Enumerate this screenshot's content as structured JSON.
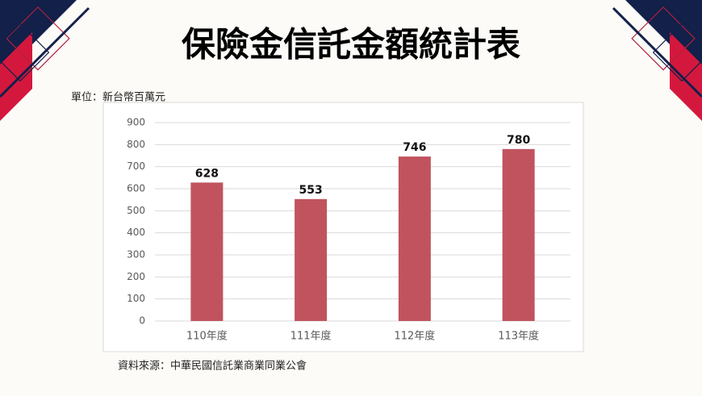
{
  "chart_data": {
    "type": "bar",
    "title": "保險金信託金額統計表",
    "unit_label": "單位：新台幣百萬元",
    "source": "資料來源：中華民國信託業商業同業公會",
    "categories": [
      "110年度",
      "111年度",
      "112年度",
      "113年度"
    ],
    "values": [
      628,
      553,
      746,
      780
    ],
    "color": "#c0535e",
    "ylim": [
      0,
      900
    ],
    "yticks": [
      0,
      100,
      200,
      300,
      400,
      500,
      600,
      700,
      800,
      900
    ],
    "grid": true
  }
}
